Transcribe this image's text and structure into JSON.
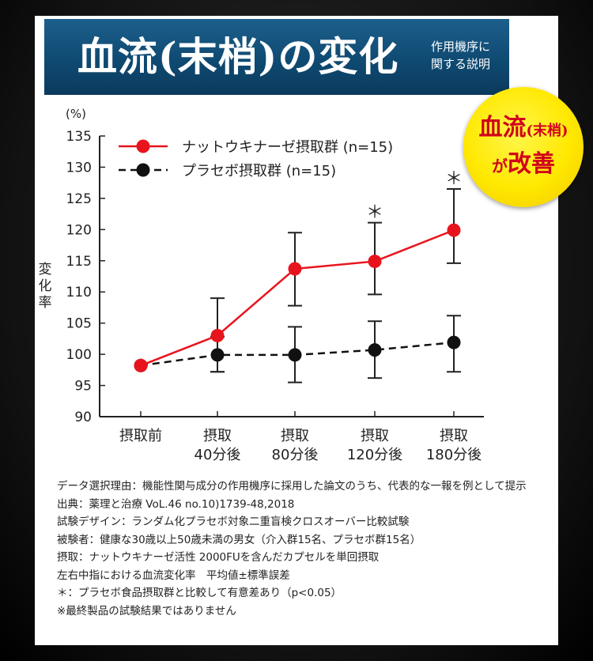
{
  "banner": {
    "title": "血流(末梢)の変化",
    "subtitle_line1": "作用機序に",
    "subtitle_line2": "関する説明"
  },
  "badge": {
    "line1_main": "血流",
    "line1_small": "(末梢)",
    "line2_small": "が",
    "line2_main": "改善"
  },
  "chart_data": {
    "type": "line",
    "y_unit": "(%)",
    "ylabel": "変化率",
    "ylim": [
      90,
      135
    ],
    "yticks": [
      90,
      95,
      100,
      105,
      110,
      115,
      120,
      125,
      130,
      135
    ],
    "categories": [
      [
        "摂取前"
      ],
      [
        "摂取",
        "40分後"
      ],
      [
        "摂取",
        "80分後"
      ],
      [
        "摂取",
        "120分後"
      ],
      [
        "摂取",
        "180分後"
      ]
    ],
    "series": [
      {
        "name": "ナットウキナーゼ摂取群 (n=15)",
        "color": "#e8141d",
        "style": "solid",
        "values": [
          98.2,
          103.0,
          113.7,
          114.9,
          119.9
        ],
        "err_upper": [
          98.2,
          109.0,
          119.5,
          121.1,
          126.5
        ],
        "err_lower": [
          98.2,
          97.2,
          107.8,
          109.6,
          114.6
        ]
      },
      {
        "name": "プラセボ摂取群 (n=15)",
        "color": "#111111",
        "style": "dashed",
        "values": [
          98.2,
          99.9,
          99.9,
          100.7,
          101.9
        ],
        "err_upper": [
          98.2,
          102.8,
          104.4,
          105.3,
          106.2
        ],
        "err_lower": [
          98.2,
          97.2,
          95.5,
          96.2,
          97.2
        ]
      }
    ],
    "significance_marker": "＊",
    "significant_indices": [
      3,
      4
    ],
    "legend_position": "top-left"
  },
  "notes": [
    "データ選択理由：機能性関与成分の作用機序に採用した論文のうち、代表的な一報を例として提示",
    "出典：薬理と治療 VoL.46 no.10)1739-48,2018",
    "試験デザイン：ランダム化プラセボ対象二重盲検クロスオーバー比較試験",
    "被験者：健康な30歳以上50歳未満の男女（介入群15名、プラセボ群15名）",
    "摂取：ナットウキナーゼ活性 2000FUを含んだカプセルを単回摂取",
    "左右中指における血流変化率　平均値±標準誤差",
    "＊：プラセボ食品摂取群と比較して有意差あり（p<0.05）",
    "※最終製品の試験結果ではありません"
  ]
}
